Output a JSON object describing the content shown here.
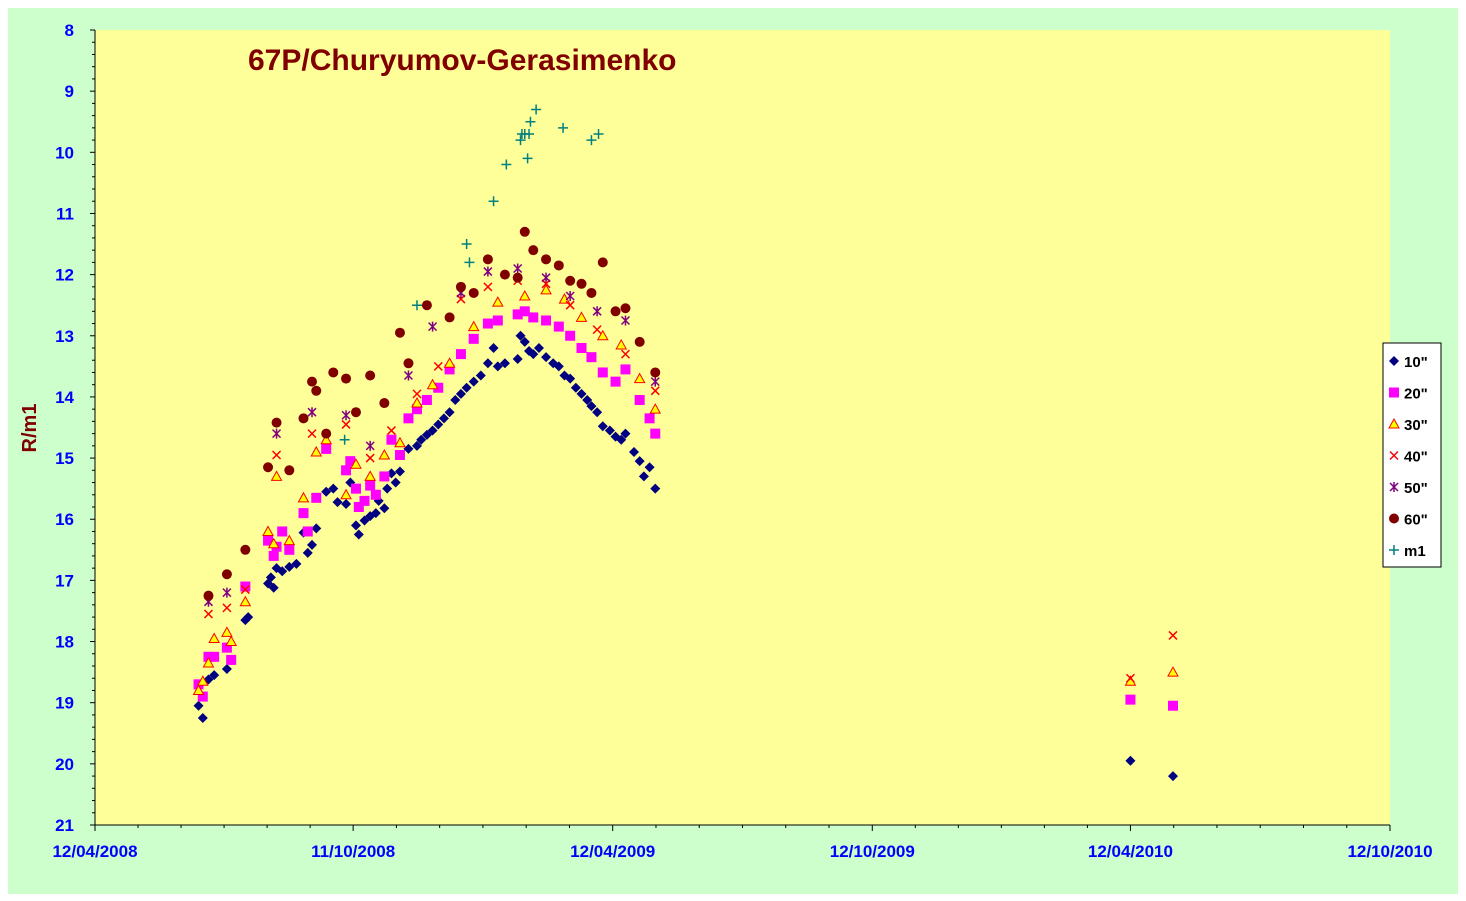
{
  "colors": {
    "outer_background": "#ccffcc",
    "plot_background": "#ffff99",
    "title": "#800000",
    "y_label": "#800000",
    "tick_labels": "#0000ff",
    "axis_line": "#000000"
  },
  "chart_data": {
    "type": "scatter",
    "title": "67P/Churyumov-Gerasimenko",
    "xlabel": "",
    "ylabel": "R/m1",
    "y_inverted": true,
    "ylim": [
      8,
      21
    ],
    "y_ticks": [
      "8",
      "9",
      "10",
      "11",
      "12",
      "13",
      "14",
      "15",
      "16",
      "17",
      "18",
      "19",
      "20",
      "21"
    ],
    "xlim": [
      "2008-04-12",
      "2010-10-12"
    ],
    "x_ticks": [
      "12/04/2008",
      "11/10/2008",
      "12/04/2009",
      "12/10/2009",
      "12/04/2010",
      "12/10/2010"
    ],
    "x_tick_dates": [
      "2008-04-12",
      "2008-10-11",
      "2009-04-12",
      "2009-10-12",
      "2010-04-12",
      "2010-10-12"
    ],
    "grid": false,
    "legend_position": "right",
    "series": [
      {
        "name": "10\"",
        "marker": "diamond",
        "color": "#000080",
        "points": [
          [
            "2008-06-24",
            19.05
          ],
          [
            "2008-06-27",
            19.25
          ],
          [
            "2008-07-01",
            18.62
          ],
          [
            "2008-07-05",
            18.55
          ],
          [
            "2008-07-14",
            18.45
          ],
          [
            "2008-07-17",
            18.3
          ],
          [
            "2008-07-27",
            17.65
          ],
          [
            "2008-07-29",
            17.6
          ],
          [
            "2008-08-12",
            17.05
          ],
          [
            "2008-08-14",
            16.95
          ],
          [
            "2008-08-16",
            17.12
          ],
          [
            "2008-08-18",
            16.8
          ],
          [
            "2008-08-22",
            16.85
          ],
          [
            "2008-08-27",
            16.78
          ],
          [
            "2008-09-01",
            16.73
          ],
          [
            "2008-09-06",
            16.22
          ],
          [
            "2008-09-09",
            16.55
          ],
          [
            "2008-09-12",
            16.42
          ],
          [
            "2008-09-15",
            16.15
          ],
          [
            "2008-09-22",
            15.55
          ],
          [
            "2008-09-27",
            15.5
          ],
          [
            "2008-09-30",
            15.72
          ],
          [
            "2008-10-06",
            15.75
          ],
          [
            "2008-10-09",
            15.4
          ],
          [
            "2008-10-13",
            16.1
          ],
          [
            "2008-10-15",
            16.25
          ],
          [
            "2008-10-19",
            16.02
          ],
          [
            "2008-10-23",
            15.95
          ],
          [
            "2008-10-27",
            15.9
          ],
          [
            "2008-10-29",
            15.7
          ],
          [
            "2008-11-02",
            15.82
          ],
          [
            "2008-11-04",
            15.5
          ],
          [
            "2008-11-07",
            15.25
          ],
          [
            "2008-11-10",
            15.4
          ],
          [
            "2008-11-13",
            15.22
          ],
          [
            "2008-11-19",
            14.85
          ],
          [
            "2008-11-25",
            14.8
          ],
          [
            "2008-11-28",
            14.7
          ],
          [
            "2008-12-02",
            14.62
          ],
          [
            "2008-12-06",
            14.55
          ],
          [
            "2008-12-10",
            14.45
          ],
          [
            "2008-12-14",
            14.35
          ],
          [
            "2008-12-18",
            14.25
          ],
          [
            "2008-12-22",
            14.05
          ],
          [
            "2008-12-26",
            13.95
          ],
          [
            "2008-12-30",
            13.85
          ],
          [
            "2009-01-04",
            13.75
          ],
          [
            "2009-01-09",
            13.65
          ],
          [
            "2009-01-14",
            13.45
          ],
          [
            "2009-01-18",
            13.2
          ],
          [
            "2009-01-21",
            13.5
          ],
          [
            "2009-01-26",
            13.45
          ],
          [
            "2009-02-04",
            13.38
          ],
          [
            "2009-02-06",
            13.0
          ],
          [
            "2009-02-09",
            13.1
          ],
          [
            "2009-02-12",
            13.25
          ],
          [
            "2009-02-15",
            13.3
          ],
          [
            "2009-02-19",
            13.2
          ],
          [
            "2009-02-24",
            13.35
          ],
          [
            "2009-03-01",
            13.45
          ],
          [
            "2009-03-05",
            13.5
          ],
          [
            "2009-03-09",
            13.65
          ],
          [
            "2009-03-13",
            13.7
          ],
          [
            "2009-03-17",
            13.85
          ],
          [
            "2009-03-21",
            13.95
          ],
          [
            "2009-03-25",
            14.05
          ],
          [
            "2009-03-28",
            14.15
          ],
          [
            "2009-04-01",
            14.25
          ],
          [
            "2009-04-05",
            14.48
          ],
          [
            "2009-04-10",
            14.55
          ],
          [
            "2009-04-14",
            14.65
          ],
          [
            "2009-04-18",
            14.7
          ],
          [
            "2009-04-21",
            14.6
          ],
          [
            "2009-04-27",
            14.9
          ],
          [
            "2009-05-01",
            15.05
          ],
          [
            "2009-05-04",
            15.3
          ],
          [
            "2009-05-08",
            15.15
          ],
          [
            "2009-05-12",
            15.5
          ],
          [
            "2010-04-12",
            19.95
          ],
          [
            "2010-05-12",
            20.2
          ]
        ]
      },
      {
        "name": "20\"",
        "marker": "square",
        "color": "#ff00ff",
        "points": [
          [
            "2008-06-24",
            18.7
          ],
          [
            "2008-06-27",
            18.9
          ],
          [
            "2008-07-01",
            18.25
          ],
          [
            "2008-07-05",
            18.25
          ],
          [
            "2008-07-14",
            18.1
          ],
          [
            "2008-07-17",
            18.3
          ],
          [
            "2008-07-27",
            17.1
          ],
          [
            "2008-08-12",
            16.35
          ],
          [
            "2008-08-16",
            16.6
          ],
          [
            "2008-08-18",
            16.45
          ],
          [
            "2008-08-22",
            16.2
          ],
          [
            "2008-08-27",
            16.5
          ],
          [
            "2008-09-06",
            15.9
          ],
          [
            "2008-09-09",
            16.2
          ],
          [
            "2008-09-15",
            15.65
          ],
          [
            "2008-09-22",
            14.85
          ],
          [
            "2008-10-06",
            15.2
          ],
          [
            "2008-10-09",
            15.05
          ],
          [
            "2008-10-13",
            15.5
          ],
          [
            "2008-10-15",
            15.8
          ],
          [
            "2008-10-19",
            15.7
          ],
          [
            "2008-10-23",
            15.45
          ],
          [
            "2008-10-27",
            15.6
          ],
          [
            "2008-11-02",
            15.3
          ],
          [
            "2008-11-07",
            14.7
          ],
          [
            "2008-11-13",
            14.95
          ],
          [
            "2008-11-19",
            14.35
          ],
          [
            "2008-11-25",
            14.2
          ],
          [
            "2008-12-02",
            14.05
          ],
          [
            "2008-12-10",
            13.85
          ],
          [
            "2008-12-18",
            13.55
          ],
          [
            "2008-12-26",
            13.3
          ],
          [
            "2009-01-04",
            13.05
          ],
          [
            "2009-01-14",
            12.8
          ],
          [
            "2009-01-21",
            12.75
          ],
          [
            "2009-02-04",
            12.65
          ],
          [
            "2009-02-09",
            12.6
          ],
          [
            "2009-02-15",
            12.7
          ],
          [
            "2009-02-24",
            12.75
          ],
          [
            "2009-03-05",
            12.85
          ],
          [
            "2009-03-13",
            13.0
          ],
          [
            "2009-03-21",
            13.2
          ],
          [
            "2009-03-28",
            13.35
          ],
          [
            "2009-04-05",
            13.6
          ],
          [
            "2009-04-14",
            13.75
          ],
          [
            "2009-04-21",
            13.55
          ],
          [
            "2009-05-01",
            14.05
          ],
          [
            "2009-05-08",
            14.35
          ],
          [
            "2009-05-12",
            14.6
          ],
          [
            "2010-04-12",
            18.95
          ],
          [
            "2010-05-12",
            19.05
          ]
        ]
      },
      {
        "name": "30\"",
        "marker": "triangle",
        "color": "#ffff00",
        "points": [
          [
            "2008-06-24",
            18.8
          ],
          [
            "2008-06-27",
            18.65
          ],
          [
            "2008-07-01",
            18.35
          ],
          [
            "2008-07-05",
            17.95
          ],
          [
            "2008-07-14",
            17.85
          ],
          [
            "2008-07-17",
            18.0
          ],
          [
            "2008-07-27",
            17.35
          ],
          [
            "2008-08-12",
            16.2
          ],
          [
            "2008-08-16",
            16.4
          ],
          [
            "2008-08-18",
            15.3
          ],
          [
            "2008-08-27",
            16.35
          ],
          [
            "2008-09-06",
            15.65
          ],
          [
            "2008-09-15",
            14.9
          ],
          [
            "2008-09-22",
            14.7
          ],
          [
            "2008-10-06",
            15.6
          ],
          [
            "2008-10-13",
            15.1
          ],
          [
            "2008-10-23",
            15.3
          ],
          [
            "2008-11-02",
            14.95
          ],
          [
            "2008-11-13",
            14.75
          ],
          [
            "2008-11-25",
            14.1
          ],
          [
            "2008-12-06",
            13.8
          ],
          [
            "2008-12-18",
            13.45
          ],
          [
            "2009-01-04",
            12.85
          ],
          [
            "2009-01-21",
            12.45
          ],
          [
            "2009-02-09",
            12.35
          ],
          [
            "2009-02-24",
            12.25
          ],
          [
            "2009-03-09",
            12.4
          ],
          [
            "2009-03-21",
            12.7
          ],
          [
            "2009-04-05",
            13.0
          ],
          [
            "2009-04-18",
            13.15
          ],
          [
            "2009-05-01",
            13.7
          ],
          [
            "2009-05-12",
            14.2
          ],
          [
            "2010-04-12",
            18.65
          ],
          [
            "2010-05-12",
            18.5
          ]
        ]
      },
      {
        "name": "40\"",
        "marker": "x",
        "color": "#ff0000",
        "points": [
          [
            "2008-07-01",
            17.55
          ],
          [
            "2008-07-14",
            17.45
          ],
          [
            "2008-07-27",
            17.15
          ],
          [
            "2008-08-18",
            14.95
          ],
          [
            "2008-09-12",
            14.6
          ],
          [
            "2008-10-06",
            14.45
          ],
          [
            "2008-10-23",
            15.0
          ],
          [
            "2008-11-07",
            14.55
          ],
          [
            "2008-11-25",
            13.95
          ],
          [
            "2008-12-10",
            13.5
          ],
          [
            "2008-12-26",
            12.4
          ],
          [
            "2009-01-14",
            12.2
          ],
          [
            "2009-02-04",
            12.1
          ],
          [
            "2009-02-24",
            12.15
          ],
          [
            "2009-03-13",
            12.5
          ],
          [
            "2009-04-01",
            12.9
          ],
          [
            "2009-04-21",
            13.3
          ],
          [
            "2009-05-12",
            13.9
          ],
          [
            "2010-04-12",
            18.6
          ],
          [
            "2010-05-12",
            17.9
          ]
        ]
      },
      {
        "name": "50\"",
        "marker": "star",
        "color": "#800080",
        "points": [
          [
            "2008-07-01",
            17.35
          ],
          [
            "2008-07-14",
            17.2
          ],
          [
            "2008-08-18",
            14.6
          ],
          [
            "2008-09-12",
            14.25
          ],
          [
            "2008-10-06",
            14.3
          ],
          [
            "2008-10-23",
            14.8
          ],
          [
            "2008-11-19",
            13.65
          ],
          [
            "2008-12-06",
            12.85
          ],
          [
            "2008-12-26",
            12.3
          ],
          [
            "2009-01-14",
            11.95
          ],
          [
            "2009-02-04",
            11.9
          ],
          [
            "2009-02-24",
            12.05
          ],
          [
            "2009-03-13",
            12.35
          ],
          [
            "2009-04-01",
            12.6
          ],
          [
            "2009-04-21",
            12.75
          ],
          [
            "2009-05-12",
            13.75
          ]
        ]
      },
      {
        "name": "60\"",
        "marker": "circle",
        "color": "#800000",
        "points": [
          [
            "2008-07-01",
            17.25
          ],
          [
            "2008-07-14",
            16.9
          ],
          [
            "2008-07-27",
            16.5
          ],
          [
            "2008-08-12",
            15.15
          ],
          [
            "2008-08-18",
            14.42
          ],
          [
            "2008-08-27",
            15.2
          ],
          [
            "2008-09-06",
            14.35
          ],
          [
            "2008-09-12",
            13.75
          ],
          [
            "2008-09-15",
            13.9
          ],
          [
            "2008-09-22",
            14.6
          ],
          [
            "2008-09-27",
            13.6
          ],
          [
            "2008-10-06",
            13.7
          ],
          [
            "2008-10-13",
            14.25
          ],
          [
            "2008-10-23",
            13.65
          ],
          [
            "2008-11-02",
            14.1
          ],
          [
            "2008-11-13",
            12.95
          ],
          [
            "2008-11-19",
            13.45
          ],
          [
            "2008-12-02",
            12.5
          ],
          [
            "2008-12-18",
            12.7
          ],
          [
            "2008-12-26",
            12.2
          ],
          [
            "2009-01-04",
            12.3
          ],
          [
            "2009-01-14",
            11.75
          ],
          [
            "2009-01-26",
            12.0
          ],
          [
            "2009-02-04",
            12.05
          ],
          [
            "2009-02-09",
            11.3
          ],
          [
            "2009-02-15",
            11.6
          ],
          [
            "2009-02-24",
            11.75
          ],
          [
            "2009-03-05",
            11.85
          ],
          [
            "2009-03-13",
            12.1
          ],
          [
            "2009-03-21",
            12.15
          ],
          [
            "2009-03-28",
            12.3
          ],
          [
            "2009-04-05",
            11.8
          ],
          [
            "2009-04-14",
            12.6
          ],
          [
            "2009-04-21",
            12.55
          ],
          [
            "2009-05-01",
            13.1
          ],
          [
            "2009-05-12",
            13.6
          ]
        ]
      },
      {
        "name": "m1",
        "marker": "plus",
        "color": "#008080",
        "points": [
          [
            "2008-10-05",
            14.7
          ],
          [
            "2008-11-25",
            12.5
          ],
          [
            "2008-12-30",
            11.5
          ],
          [
            "2009-01-01",
            11.8
          ],
          [
            "2009-01-18",
            10.8
          ],
          [
            "2009-01-27",
            10.2
          ],
          [
            "2009-02-06",
            9.8
          ],
          [
            "2009-02-07",
            9.7
          ],
          [
            "2009-02-09",
            9.7
          ],
          [
            "2009-02-11",
            10.1
          ],
          [
            "2009-02-12",
            9.7
          ],
          [
            "2009-02-13",
            9.5
          ],
          [
            "2009-02-17",
            9.3
          ],
          [
            "2009-03-08",
            9.6
          ],
          [
            "2009-03-28",
            9.8
          ],
          [
            "2009-04-02",
            9.7
          ]
        ]
      }
    ]
  }
}
